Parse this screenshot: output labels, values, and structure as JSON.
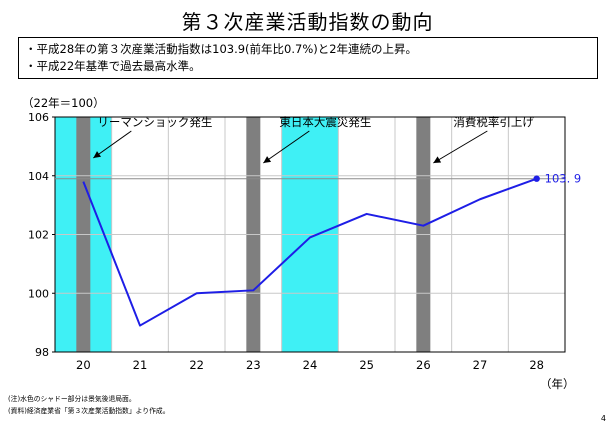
{
  "page": {
    "title": "第３次産業活動指数の動向",
    "summary": [
      "・平成28年の第３次産業活動指数は103.9(前年比0.7%)と2年連続の上昇。",
      "・平成22年基準で過去最高水準。"
    ],
    "unit_label": "（22年＝100）",
    "x_unit_label": "（年）",
    "notes": [
      "(注)水色のシャドー部分は景気後退局面。",
      "(資料)経済産業省「第３次産業活動指数」より作成。"
    ],
    "page_number": "4"
  },
  "chart_data": {
    "type": "line",
    "x": [
      20,
      21,
      22,
      23,
      24,
      25,
      26,
      27,
      28
    ],
    "categories": [
      "20",
      "21",
      "22",
      "23",
      "24",
      "25",
      "26",
      "27",
      "28"
    ],
    "values": [
      103.8,
      98.9,
      100.0,
      100.1,
      101.9,
      102.7,
      102.3,
      103.2,
      103.9
    ],
    "xlim": [
      19.5,
      28.5
    ],
    "ylim": [
      98,
      106
    ],
    "yticks": [
      98,
      100,
      102,
      104,
      106
    ],
    "grid": true,
    "reference_line": 103.9,
    "end_label": "103. 9",
    "colors": {
      "line": "#1e1ee6",
      "recession_shade": "#3ff0f5",
      "event_bar": "#7f7f7f",
      "grid": "#c8c8c8",
      "reference_line": "#8c8c8c"
    },
    "recession_shades": [
      {
        "start": 19.5,
        "end": 20.5
      },
      {
        "start": 23.5,
        "end": 24.5
      }
    ],
    "event_markers": [
      {
        "x": 20.0,
        "label": "リーマンショック発生"
      },
      {
        "x": 23.0,
        "label": "東日本大震災発生"
      },
      {
        "x": 26.0,
        "label": "消費税率引上げ"
      }
    ]
  }
}
